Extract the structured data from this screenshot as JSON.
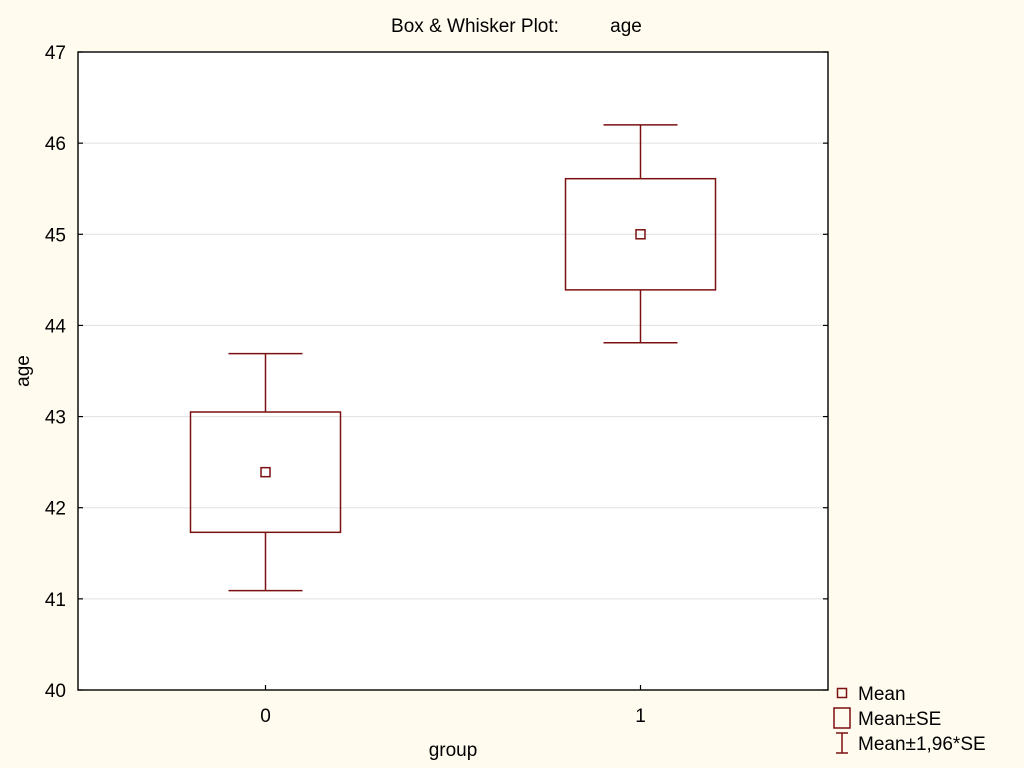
{
  "chart_data": {
    "type": "box",
    "title": "Box & Whisker Plot:",
    "title_var": "age",
    "xlabel": "group",
    "ylabel": "age",
    "ylim": [
      40,
      47
    ],
    "yticks": [
      40,
      41,
      42,
      43,
      44,
      45,
      46,
      47
    ],
    "categories": [
      "0",
      "1"
    ],
    "grid": true,
    "legend_position": "bottom-right",
    "series": [
      {
        "category": "0",
        "mean": 42.39,
        "se_low": 41.73,
        "se_high": 43.05,
        "ci_low": 41.09,
        "ci_high": 43.69
      },
      {
        "category": "1",
        "mean": 45.0,
        "se_low": 44.39,
        "se_high": 45.61,
        "ci_low": 43.81,
        "ci_high": 46.2
      }
    ],
    "legend": [
      {
        "symbol": "mean",
        "label": "Mean"
      },
      {
        "symbol": "box",
        "label": "Mean±SE"
      },
      {
        "symbol": "whisker",
        "label": "Mean±1,96*SE"
      }
    ],
    "colors": {
      "mark": "#7b1010",
      "grid": "#e0e0e0",
      "background": "#fffbef",
      "plot_bg": "#ffffff"
    }
  }
}
